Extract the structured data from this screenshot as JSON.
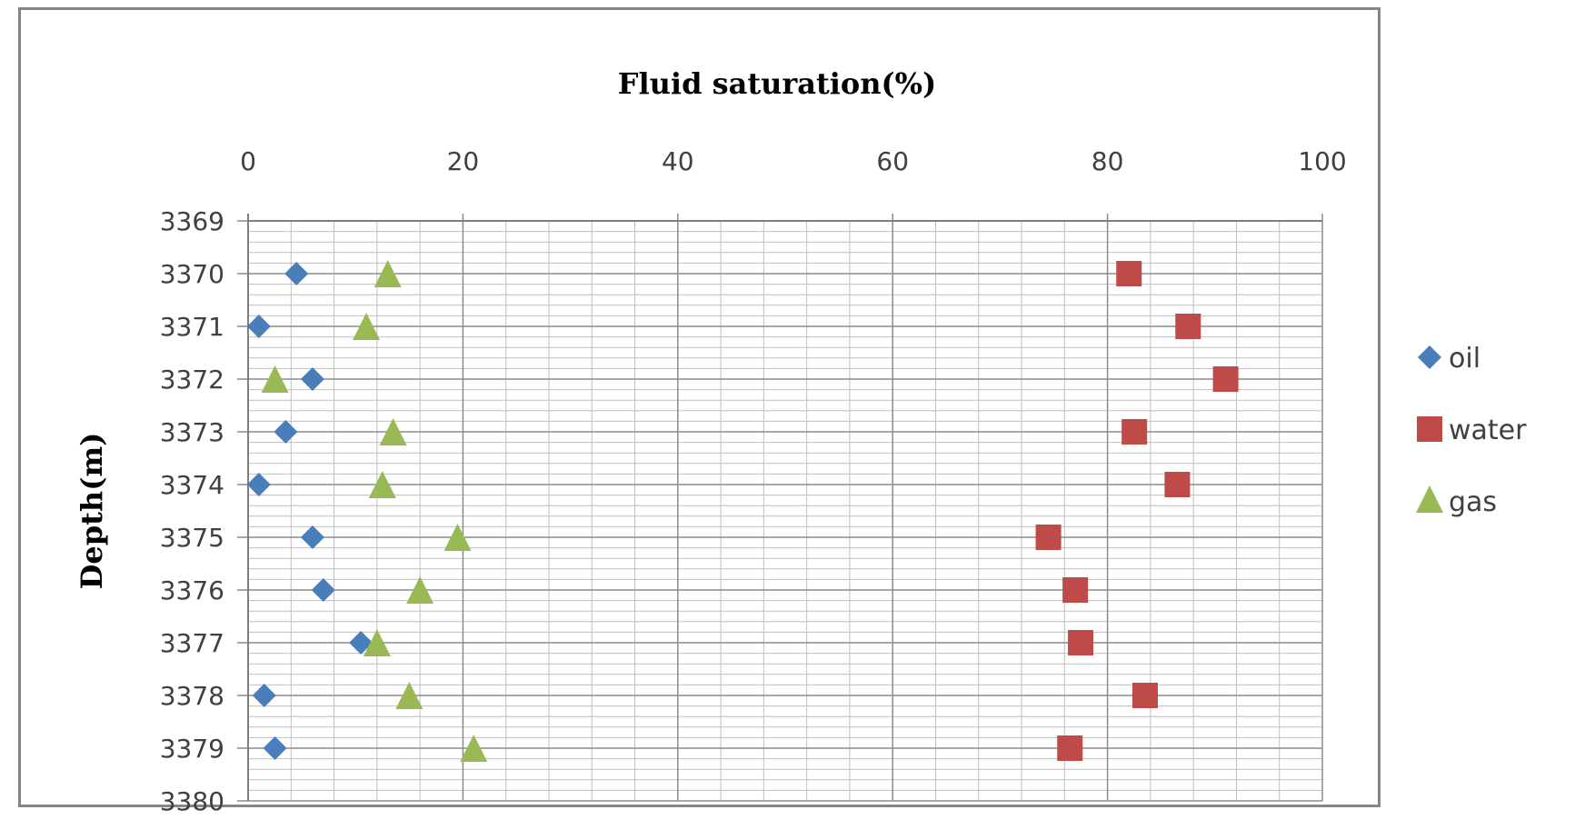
{
  "chart_data": {
    "type": "scatter",
    "title": "Fluid saturation(%)",
    "xlabel": "Fluid saturation(%)",
    "ylabel": "Depth(m)",
    "xlim": [
      0,
      100
    ],
    "ylim": [
      3369,
      3380
    ],
    "y_reversed": true,
    "x_axis_position": "top",
    "x_ticks": [
      "0",
      "20",
      "40",
      "60",
      "80",
      "100"
    ],
    "y_ticks": [
      "3369",
      "3370",
      "3371",
      "3372",
      "3373",
      "3374",
      "3375",
      "3376",
      "3377",
      "3378",
      "3379",
      "3380"
    ],
    "grid": true,
    "legend_position": "right",
    "series": [
      {
        "name": "oil",
        "marker": "diamond",
        "color": "#4a7ebb",
        "points": [
          [
            4.5,
            3370
          ],
          [
            1,
            3371
          ],
          [
            6,
            3372
          ],
          [
            3.5,
            3373
          ],
          [
            1,
            3374
          ],
          [
            6,
            3375
          ],
          [
            7,
            3376
          ],
          [
            10.5,
            3377
          ],
          [
            1.5,
            3378
          ],
          [
            2.5,
            3379
          ]
        ]
      },
      {
        "name": "water",
        "marker": "square",
        "color": "#be4b48",
        "points": [
          [
            82,
            3370
          ],
          [
            87.5,
            3371
          ],
          [
            91,
            3372
          ],
          [
            82.5,
            3373
          ],
          [
            86.5,
            3374
          ],
          [
            74.5,
            3375
          ],
          [
            77,
            3376
          ],
          [
            77.5,
            3377
          ],
          [
            83.5,
            3378
          ],
          [
            76.5,
            3379
          ]
        ]
      },
      {
        "name": "gas",
        "marker": "triangle",
        "color": "#98b954",
        "points": [
          [
            13,
            3370
          ],
          [
            11,
            3371
          ],
          [
            2.5,
            3372
          ],
          [
            13.5,
            3373
          ],
          [
            12.5,
            3374
          ],
          [
            19.5,
            3375
          ],
          [
            16,
            3376
          ],
          [
            12,
            3377
          ],
          [
            15,
            3378
          ],
          [
            21,
            3379
          ]
        ]
      }
    ]
  }
}
